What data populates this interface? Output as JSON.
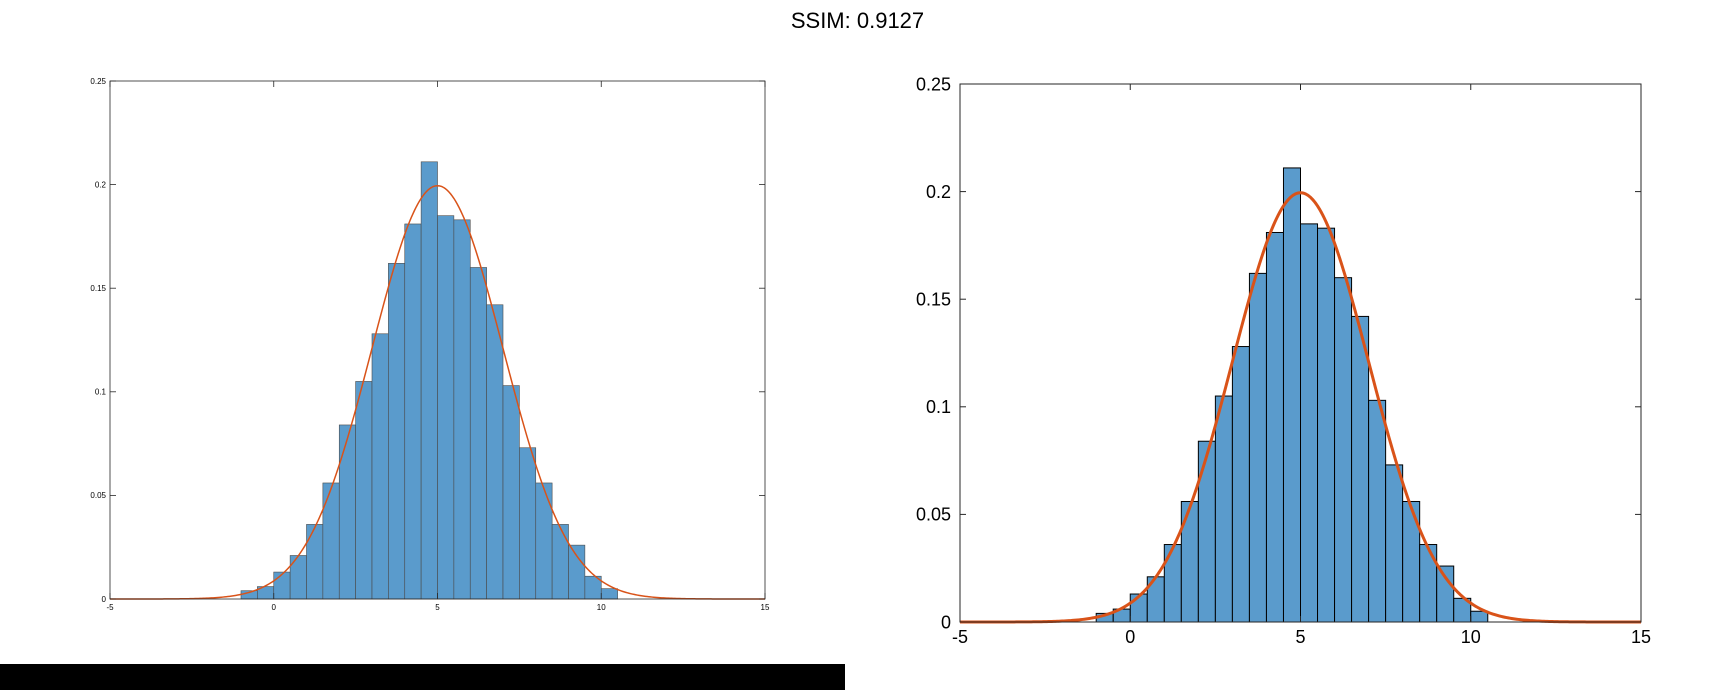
{
  "title": "SSIM: 0.9127",
  "colors": {
    "bar_fill": "#5a9bcc",
    "curve": "#d95319",
    "axis": "#262626"
  },
  "chart_data": [
    {
      "type": "bar",
      "title": "",
      "xlabel": "",
      "ylabel": "",
      "xlim": [
        -5,
        15
      ],
      "ylim": [
        0,
        0.25
      ],
      "xticks": [
        "-5",
        "0",
        "5",
        "10",
        "15"
      ],
      "yticks": [
        "0",
        "0.05",
        "0.1",
        "0.15",
        "0.2",
        "0.25"
      ],
      "bins": {
        "start": -1,
        "width": 0.5,
        "values": [
          0.004,
          0.006,
          0.013,
          0.021,
          0.036,
          0.056,
          0.084,
          0.105,
          0.128,
          0.162,
          0.181,
          0.211,
          0.185,
          0.183,
          0.16,
          0.142,
          0.103,
          0.073,
          0.056,
          0.036,
          0.026,
          0.011,
          0.005
        ]
      },
      "curve": {
        "type": "normal-pdf",
        "mean": 5,
        "std": 2
      },
      "grid": false
    },
    {
      "type": "bar",
      "title": "",
      "xlabel": "",
      "ylabel": "",
      "xlim": [
        -5,
        15
      ],
      "ylim": [
        0,
        0.25
      ],
      "xticks": [
        "-5",
        "0",
        "5",
        "10",
        "15"
      ],
      "yticks": [
        "0",
        "0.05",
        "0.1",
        "0.15",
        "0.2",
        "0.25"
      ],
      "bins": {
        "start": -1,
        "width": 0.5,
        "values": [
          0.004,
          0.006,
          0.013,
          0.021,
          0.036,
          0.056,
          0.084,
          0.105,
          0.128,
          0.162,
          0.181,
          0.211,
          0.185,
          0.183,
          0.16,
          0.142,
          0.103,
          0.073,
          0.056,
          0.036,
          0.026,
          0.011,
          0.005
        ]
      },
      "curve": {
        "type": "normal-pdf",
        "mean": 5,
        "std": 2
      },
      "grid": false
    }
  ]
}
